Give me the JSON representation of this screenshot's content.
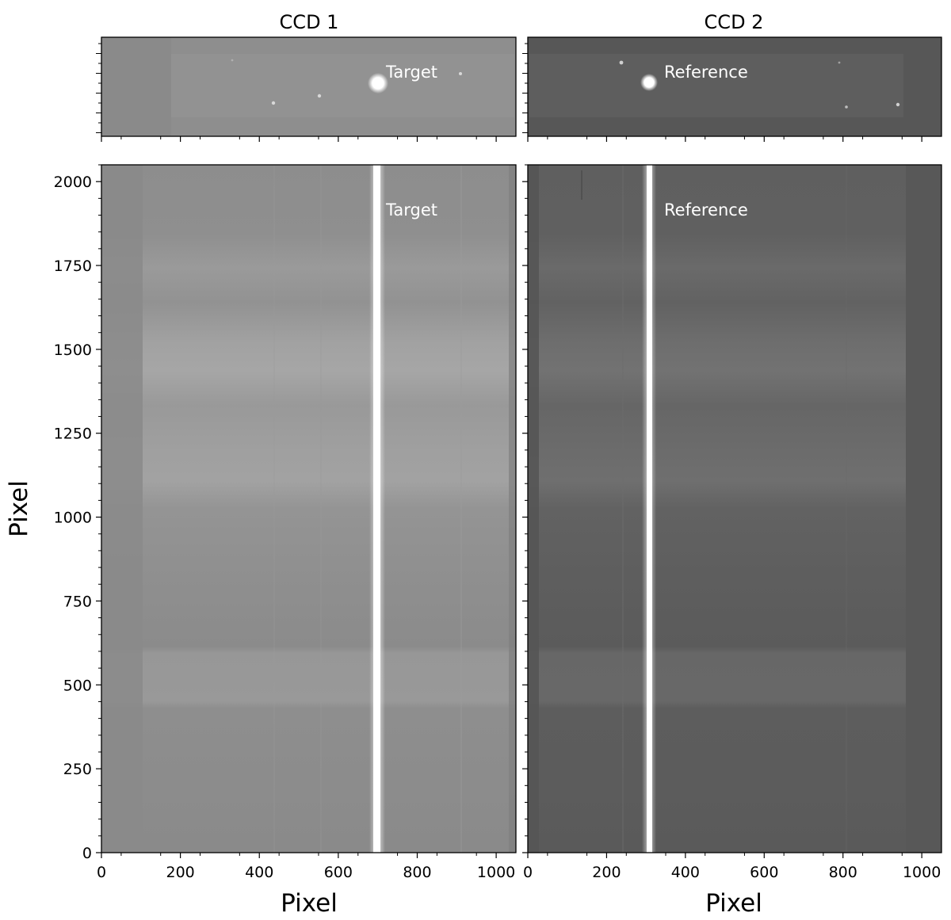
{
  "panels": [
    {
      "id": "ccd1",
      "title": "CCD 1",
      "image_label": "Target",
      "background_tone": "#8a8a8a",
      "star_center_x": 700,
      "trace_x": 698,
      "top_stars_x": [
        440,
        555,
        905,
        335
      ]
    },
    {
      "id": "ccd2",
      "title": "CCD 2",
      "image_label": "Reference",
      "background_tone": "#5f5f5f",
      "star_center_x": 310,
      "trace_x": 312,
      "top_stars_x": [
        235,
        790,
        805,
        950
      ]
    }
  ],
  "x_axis": {
    "label": "Pixel",
    "range": [
      0,
      1050
    ],
    "tick_values": [
      0,
      200,
      400,
      600,
      800,
      1000
    ],
    "tick_labels": [
      "0",
      "200",
      "400",
      "600",
      "800",
      "1000"
    ]
  },
  "y_axis": {
    "label": "Pixel",
    "range": [
      0,
      2050
    ],
    "tick_values": [
      0,
      250,
      500,
      750,
      1000,
      1250,
      1500,
      1750,
      2000
    ],
    "tick_labels": [
      "0",
      "250",
      "500",
      "750",
      "1000",
      "1250",
      "1500",
      "1750",
      "2000"
    ]
  }
}
